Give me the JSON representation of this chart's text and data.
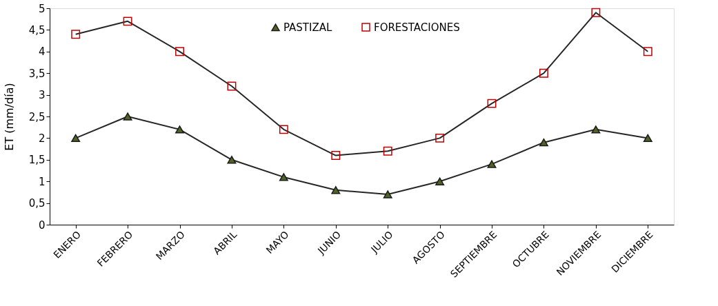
{
  "chart_data": {
    "type": "line",
    "ylabel": "ET (mm/día)",
    "categories": [
      "ENERO",
      "FEBRERO",
      "MARZO",
      "ABRIL",
      "MAYO",
      "JUNIO",
      "JULIO",
      "AGOSTO",
      "SEPTIEMBRE",
      "OCTUBRE",
      "NOVIEMBRE",
      "DICIEMBRE"
    ],
    "series": [
      {
        "name": "PASTIZAL",
        "color": "#4f6228",
        "marker": "triangle",
        "values": [
          2.0,
          2.5,
          2.2,
          1.5,
          1.1,
          0.8,
          0.7,
          1.0,
          1.4,
          1.9,
          2.2,
          2.0
        ]
      },
      {
        "name": "FORESTACIONES",
        "color": "#c00000",
        "marker": "square",
        "values": [
          4.4,
          4.7,
          4.0,
          3.2,
          2.2,
          1.6,
          1.7,
          2.0,
          2.8,
          3.5,
          4.9,
          4.0
        ]
      }
    ],
    "ylim": [
      0,
      5
    ],
    "yticks": [
      0,
      {
        "value": 0.5,
        "label": "0,5"
      },
      1,
      {
        "value": 1.5,
        "label": "1,5"
      },
      2,
      {
        "value": 2.5,
        "label": "2,5"
      },
      3,
      {
        "value": 3.5,
        "label": "3,5"
      },
      4,
      {
        "value": 4.5,
        "label": "4,5"
      },
      5
    ],
    "grid": false,
    "legend": "top",
    "line_style": "solid"
  }
}
